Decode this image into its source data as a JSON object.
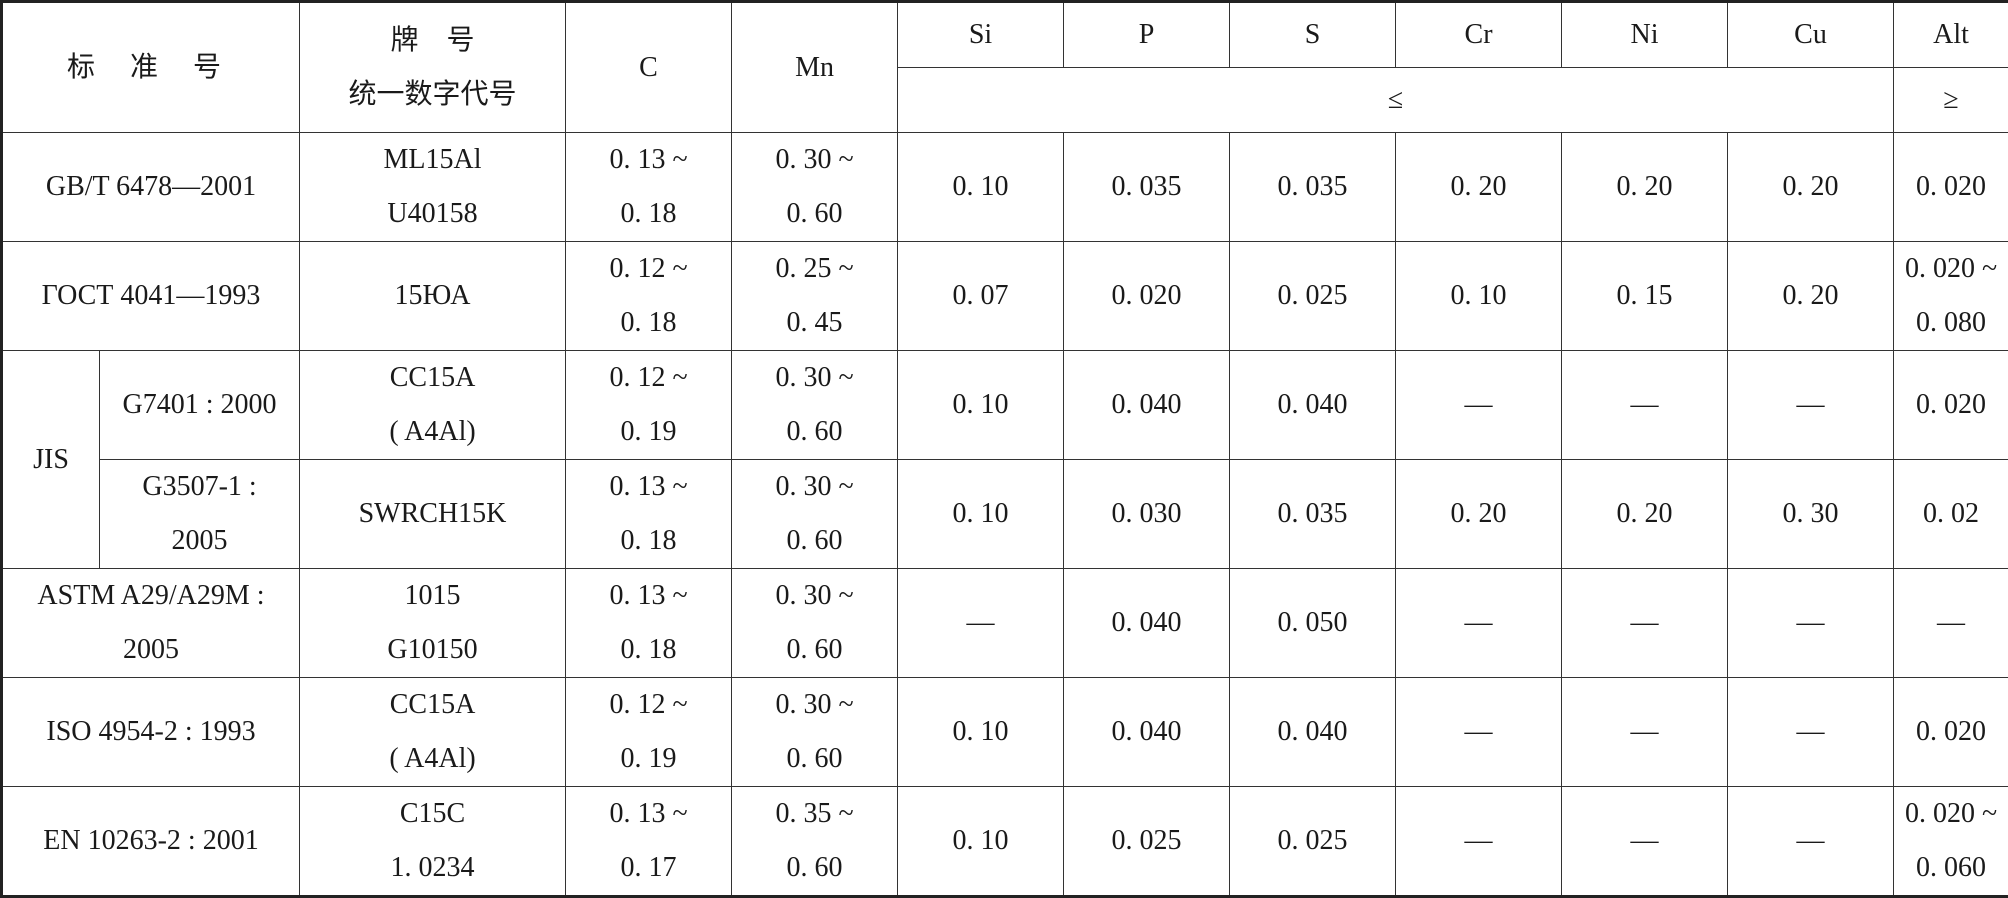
{
  "headers": {
    "standard": "标 准 号",
    "grade_line1": "牌　号",
    "grade_line2": "统一数字代号",
    "c": "C",
    "mn": "Mn",
    "si": "Si",
    "p": "P",
    "s": "S",
    "cr": "Cr",
    "ni": "Ni",
    "cu": "Cu",
    "alt": "Alt",
    "le": "≤",
    "ge": "≥"
  },
  "rows": [
    {
      "standard": "GB/T 6478—2001",
      "grade": [
        "ML15Al",
        "U40158"
      ],
      "c": [
        "0. 13 ~",
        "0. 18"
      ],
      "mn": [
        "0. 30 ~",
        "0. 60"
      ],
      "si": "0. 10",
      "p": "0. 035",
      "s": "0. 035",
      "cr": "0. 20",
      "ni": "0. 20",
      "cu": "0. 20",
      "alt": [
        "0. 020"
      ]
    },
    {
      "standard": "ГОСТ 4041—1993",
      "grade": [
        "15ЮА"
      ],
      "c": [
        "0. 12 ~",
        "0. 18"
      ],
      "mn": [
        "0. 25 ~",
        "0. 45"
      ],
      "si": "0. 07",
      "p": "0. 020",
      "s": "0. 025",
      "cr": "0. 10",
      "ni": "0. 15",
      "cu": "0. 20",
      "alt": [
        "0. 020 ~",
        "0. 080"
      ]
    },
    {
      "standard_group": "JIS",
      "standard": "G7401 : 2000",
      "grade": [
        "CC15A",
        "( A4Al)"
      ],
      "c": [
        "0. 12 ~",
        "0. 19"
      ],
      "mn": [
        "0. 30 ~",
        "0. 60"
      ],
      "si": "0. 10",
      "p": "0. 040",
      "s": "0. 040",
      "cr": "—",
      "ni": "—",
      "cu": "—",
      "alt": [
        "0. 020"
      ]
    },
    {
      "standard": [
        "G3507-1 :",
        "2005"
      ],
      "grade": [
        "SWRCH15K"
      ],
      "c": [
        "0. 13 ~",
        "0. 18"
      ],
      "mn": [
        "0. 30 ~",
        "0. 60"
      ],
      "si": "0. 10",
      "p": "0. 030",
      "s": "0. 035",
      "cr": "0. 20",
      "ni": "0. 20",
      "cu": "0. 30",
      "alt": [
        "0. 02"
      ]
    },
    {
      "standard": [
        "ASTM A29/A29M :",
        "2005"
      ],
      "grade": [
        "1015",
        "G10150"
      ],
      "c": [
        "0. 13 ~",
        "0. 18"
      ],
      "mn": [
        "0. 30 ~",
        "0. 60"
      ],
      "si": "—",
      "p": "0. 040",
      "s": "0. 050",
      "cr": "—",
      "ni": "—",
      "cu": "—",
      "alt": [
        "—"
      ]
    },
    {
      "standard": "ISO 4954-2 : 1993",
      "grade": [
        "CC15A",
        "( A4Al)"
      ],
      "c": [
        "0. 12 ~",
        "0. 19"
      ],
      "mn": [
        "0. 30 ~",
        "0. 60"
      ],
      "si": "0. 10",
      "p": "0. 040",
      "s": "0. 040",
      "cr": "—",
      "ni": "—",
      "cu": "—",
      "alt": [
        "0. 020"
      ]
    },
    {
      "standard": "EN 10263-2 : 2001",
      "grade": [
        "C15C",
        "1. 0234"
      ],
      "c": [
        "0. 13 ~",
        "0. 17"
      ],
      "mn": [
        "0. 35 ~",
        "0. 60"
      ],
      "si": "0. 10",
      "p": "0. 025",
      "s": "0. 025",
      "cr": "—",
      "ni": "—",
      "cu": "—",
      "alt": [
        "0. 020 ~",
        "0. 060"
      ]
    }
  ]
}
